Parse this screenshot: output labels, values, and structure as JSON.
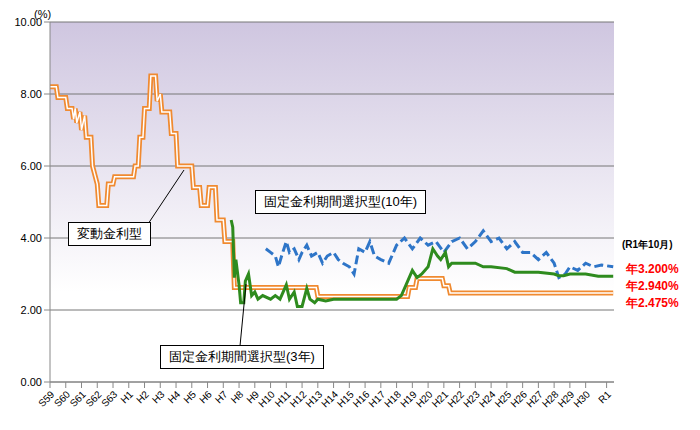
{
  "chart_data": {
    "type": "line",
    "ylabel": "(%)",
    "grid": true,
    "ylim": [
      0,
      10
    ],
    "yticks": [
      {
        "value": 0,
        "label": "0.00"
      },
      {
        "value": 2,
        "label": "2.00"
      },
      {
        "value": 4,
        "label": "4.00"
      },
      {
        "value": 6,
        "label": "6.00"
      },
      {
        "value": 8,
        "label": "8.00"
      },
      {
        "value": 10,
        "label": "10.00"
      }
    ],
    "xlim": [
      1984,
      2019.8
    ],
    "xticks": [
      {
        "value": 1984,
        "label": "S59"
      },
      {
        "value": 1985,
        "label": "S60"
      },
      {
        "value": 1986,
        "label": "S61"
      },
      {
        "value": 1987,
        "label": "S62"
      },
      {
        "value": 1988,
        "label": "S63"
      },
      {
        "value": 1989,
        "label": "H1"
      },
      {
        "value": 1990,
        "label": "H2"
      },
      {
        "value": 1991,
        "label": "H3"
      },
      {
        "value": 1992,
        "label": "H4"
      },
      {
        "value": 1993,
        "label": "H5"
      },
      {
        "value": 1994,
        "label": "H6"
      },
      {
        "value": 1995,
        "label": "H7"
      },
      {
        "value": 1996,
        "label": "H8"
      },
      {
        "value": 1997,
        "label": "H9"
      },
      {
        "value": 1998,
        "label": "H10"
      },
      {
        "value": 1999,
        "label": "H11"
      },
      {
        "value": 2000,
        "label": "H12"
      },
      {
        "value": 2001,
        "label": "H13"
      },
      {
        "value": 2002,
        "label": "H14"
      },
      {
        "value": 2003,
        "label": "H15"
      },
      {
        "value": 2004,
        "label": "H16"
      },
      {
        "value": 2005,
        "label": "H17"
      },
      {
        "value": 2006,
        "label": "H18"
      },
      {
        "value": 2007,
        "label": "H19"
      },
      {
        "value": 2008,
        "label": "H20"
      },
      {
        "value": 2009,
        "label": "H21"
      },
      {
        "value": 2010,
        "label": "H22"
      },
      {
        "value": 2011,
        "label": "H23"
      },
      {
        "value": 2012,
        "label": "H24"
      },
      {
        "value": 2013,
        "label": "H25"
      },
      {
        "value": 2014,
        "label": "H26"
      },
      {
        "value": 2015,
        "label": "H27"
      },
      {
        "value": 2016,
        "label": "H28"
      },
      {
        "value": 2017,
        "label": "H29"
      },
      {
        "value": 2018,
        "label": "H30"
      },
      {
        "value": 2019.33,
        "label": "R1"
      }
    ],
    "series": [
      {
        "name": "変動金利型",
        "color": "#f08a30",
        "line_style": "double",
        "x": [
          1984.0,
          1984.4,
          1984.5,
          1985.0,
          1985.1,
          1985.4,
          1985.5,
          1985.6,
          1985.7,
          1985.9,
          1986.0,
          1986.2,
          1986.3,
          1986.6,
          1986.7,
          1987.0,
          1987.1,
          1987.6,
          1987.7,
          1988.0,
          1988.1,
          1989.3,
          1989.4,
          1989.6,
          1989.7,
          1989.9,
          1990.0,
          1990.3,
          1990.4,
          1990.7,
          1990.8,
          1991.0,
          1991.1,
          1991.6,
          1991.7,
          1992.0,
          1992.1,
          1993.0,
          1993.1,
          1993.5,
          1993.6,
          1994.0,
          1994.1,
          1994.5,
          1994.6,
          1995.0,
          1995.1,
          1995.6,
          1995.7,
          2000.9,
          2001.0,
          2006.7,
          2006.8,
          2007.2,
          2007.3,
          2008.9,
          2009.0,
          2009.3,
          2009.4,
          2019.75
        ],
        "values": [
          8.2,
          8.2,
          7.9,
          7.9,
          7.6,
          7.6,
          7.3,
          7.6,
          7.2,
          7.5,
          7.0,
          7.4,
          6.8,
          6.8,
          6.0,
          5.5,
          4.9,
          4.9,
          5.5,
          5.5,
          5.7,
          5.7,
          6.0,
          6.0,
          6.8,
          6.8,
          7.6,
          7.6,
          8.5,
          8.5,
          7.8,
          8.0,
          7.5,
          7.5,
          6.9,
          6.9,
          6.0,
          6.0,
          5.4,
          5.4,
          4.9,
          4.9,
          5.4,
          5.4,
          4.5,
          4.5,
          3.9,
          3.9,
          2.625,
          2.625,
          2.375,
          2.375,
          2.625,
          2.625,
          2.875,
          2.875,
          2.675,
          2.675,
          2.475,
          2.475
        ]
      },
      {
        "name": "固定金利期間選択型(10年)",
        "color": "#2e75c8",
        "line_style": "dashed",
        "x": [
          1997.7,
          1998.0,
          1998.3,
          1998.5,
          1998.7,
          1999.0,
          1999.2,
          1999.5,
          1999.8,
          2000.0,
          2000.3,
          2000.6,
          2001.0,
          2001.3,
          2001.6,
          2002.0,
          2002.3,
          2002.6,
          2003.0,
          2003.3,
          2003.6,
          2004.0,
          2004.3,
          2004.6,
          2005.0,
          2005.5,
          2006.0,
          2006.5,
          2007.0,
          2007.5,
          2008.0,
          2008.5,
          2009.0,
          2009.5,
          2010.0,
          2010.5,
          2011.0,
          2011.5,
          2012.0,
          2012.5,
          2013.0,
          2013.5,
          2014.0,
          2014.5,
          2015.0,
          2015.5,
          2016.0,
          2016.3,
          2016.7,
          2017.0,
          2017.5,
          2018.0,
          2018.5,
          2019.0,
          2019.75
        ],
        "values": [
          3.7,
          3.6,
          3.5,
          3.2,
          3.5,
          3.9,
          3.6,
          3.7,
          3.4,
          3.6,
          3.8,
          3.5,
          3.6,
          3.3,
          3.5,
          3.6,
          3.4,
          3.3,
          3.2,
          3.0,
          3.7,
          3.6,
          3.9,
          3.5,
          3.4,
          3.3,
          3.8,
          4.0,
          3.7,
          4.0,
          3.8,
          3.9,
          3.6,
          3.9,
          4.0,
          3.7,
          3.9,
          4.2,
          3.9,
          4.0,
          3.7,
          3.9,
          3.6,
          3.6,
          3.4,
          3.6,
          3.3,
          2.9,
          3.0,
          3.2,
          3.1,
          3.3,
          3.2,
          3.25,
          3.2
        ]
      },
      {
        "name": "固定金利期間選択型(3年)",
        "color": "#2e8b1e",
        "line_style": "solid",
        "x": [
          1995.5,
          1995.6,
          1995.7,
          1995.8,
          1996.0,
          1996.1,
          1996.3,
          1996.4,
          1996.6,
          1996.8,
          1997.0,
          1997.2,
          1997.5,
          1998.0,
          1998.3,
          1998.6,
          1999.0,
          1999.2,
          1999.5,
          1999.7,
          2000.0,
          2000.3,
          2000.5,
          2000.8,
          2001.0,
          2001.5,
          2002.0,
          2003.0,
          2004.0,
          2005.0,
          2006.0,
          2006.3,
          2006.6,
          2007.0,
          2007.3,
          2007.6,
          2008.0,
          2008.3,
          2008.6,
          2008.8,
          2009.1,
          2009.3,
          2009.5,
          2010.0,
          2011.0,
          2011.5,
          2012.0,
          2013.0,
          2013.5,
          2014.0,
          2015.0,
          2016.0,
          2016.3,
          2016.6,
          2017.0,
          2018.0,
          2018.8,
          2019.75
        ],
        "values": [
          4.5,
          4.3,
          2.9,
          3.4,
          2.7,
          2.2,
          2.2,
          2.8,
          3.0,
          2.4,
          2.5,
          2.3,
          2.4,
          2.3,
          2.4,
          2.3,
          2.7,
          2.3,
          2.5,
          2.1,
          2.1,
          2.6,
          2.3,
          2.2,
          2.3,
          2.25,
          2.3,
          2.3,
          2.3,
          2.3,
          2.3,
          2.4,
          2.7,
          3.1,
          2.9,
          3.0,
          3.2,
          3.7,
          3.5,
          3.4,
          3.6,
          3.2,
          3.3,
          3.3,
          3.3,
          3.2,
          3.2,
          3.15,
          3.05,
          3.05,
          3.05,
          3.0,
          2.95,
          2.95,
          3.0,
          3.0,
          2.94,
          2.94
        ]
      }
    ],
    "annotations": [
      {
        "text": "(R1年10月)",
        "color": "#000000"
      },
      {
        "text": "年3.200%",
        "color": "#ff0000"
      },
      {
        "text": "年2.940%",
        "color": "#ff0000"
      },
      {
        "text": "年2.475%",
        "color": "#ff0000"
      }
    ]
  }
}
